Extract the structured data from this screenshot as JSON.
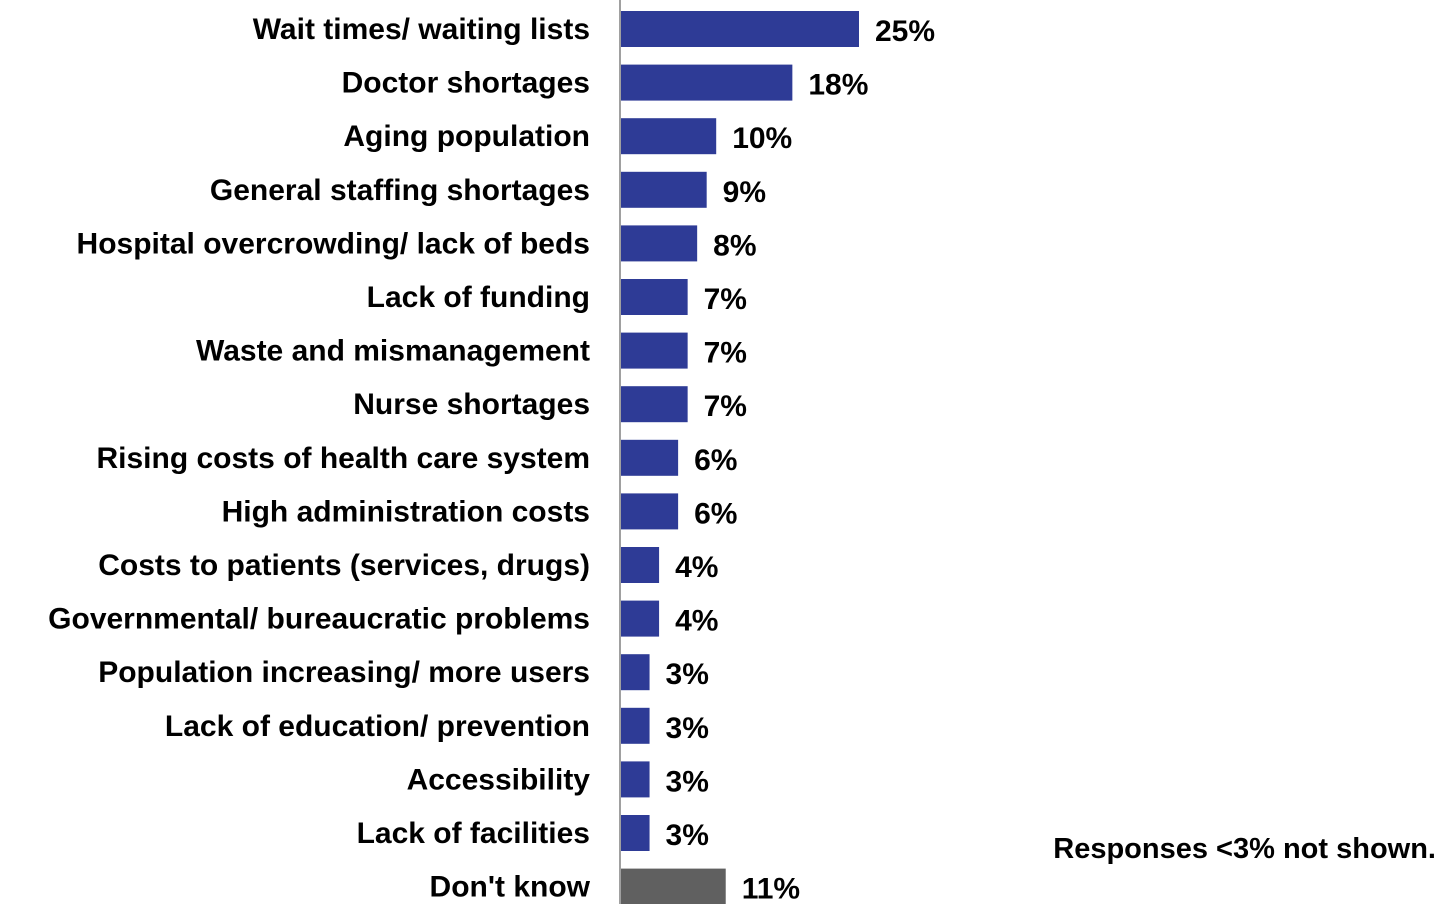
{
  "chart_data": {
    "type": "bar",
    "orientation": "horizontal",
    "categories": [
      "Wait times/ waiting lists",
      "Doctor shortages",
      "Aging population",
      "General staffing shortages",
      "Hospital overcrowding/ lack of beds",
      "Lack of funding",
      "Waste and mismanagement",
      "Nurse shortages",
      "Rising costs of health care system",
      "High administration costs",
      "Costs to patients (services, drugs)",
      "Governmental/ bureaucratic problems",
      "Population increasing/ more users",
      "Lack of education/ prevention",
      "Accessibility",
      "Lack of facilities",
      "Don't know"
    ],
    "values": [
      25,
      18,
      10,
      9,
      8,
      7,
      7,
      7,
      6,
      6,
      4,
      4,
      3,
      3,
      3,
      3,
      11
    ],
    "value_labels": [
      "25%",
      "18%",
      "10%",
      "9%",
      "8%",
      "7%",
      "7%",
      "7%",
      "6%",
      "6%",
      "4%",
      "4%",
      "3%",
      "3%",
      "3%",
      "3%",
      "11%"
    ],
    "bar_colors": [
      "#2e3b96",
      "#2e3b96",
      "#2e3b96",
      "#2e3b96",
      "#2e3b96",
      "#2e3b96",
      "#2e3b96",
      "#2e3b96",
      "#2e3b96",
      "#2e3b96",
      "#2e3b96",
      "#2e3b96",
      "#2e3b96",
      "#2e3b96",
      "#2e3b96",
      "#2e3b96",
      "#606060"
    ],
    "xlim": [
      0,
      25
    ],
    "title": "",
    "xlabel": "",
    "ylabel": "",
    "grid": false,
    "legend": "none",
    "axis_color": "#a0a0a0"
  },
  "note": "Responses <3% not shown."
}
